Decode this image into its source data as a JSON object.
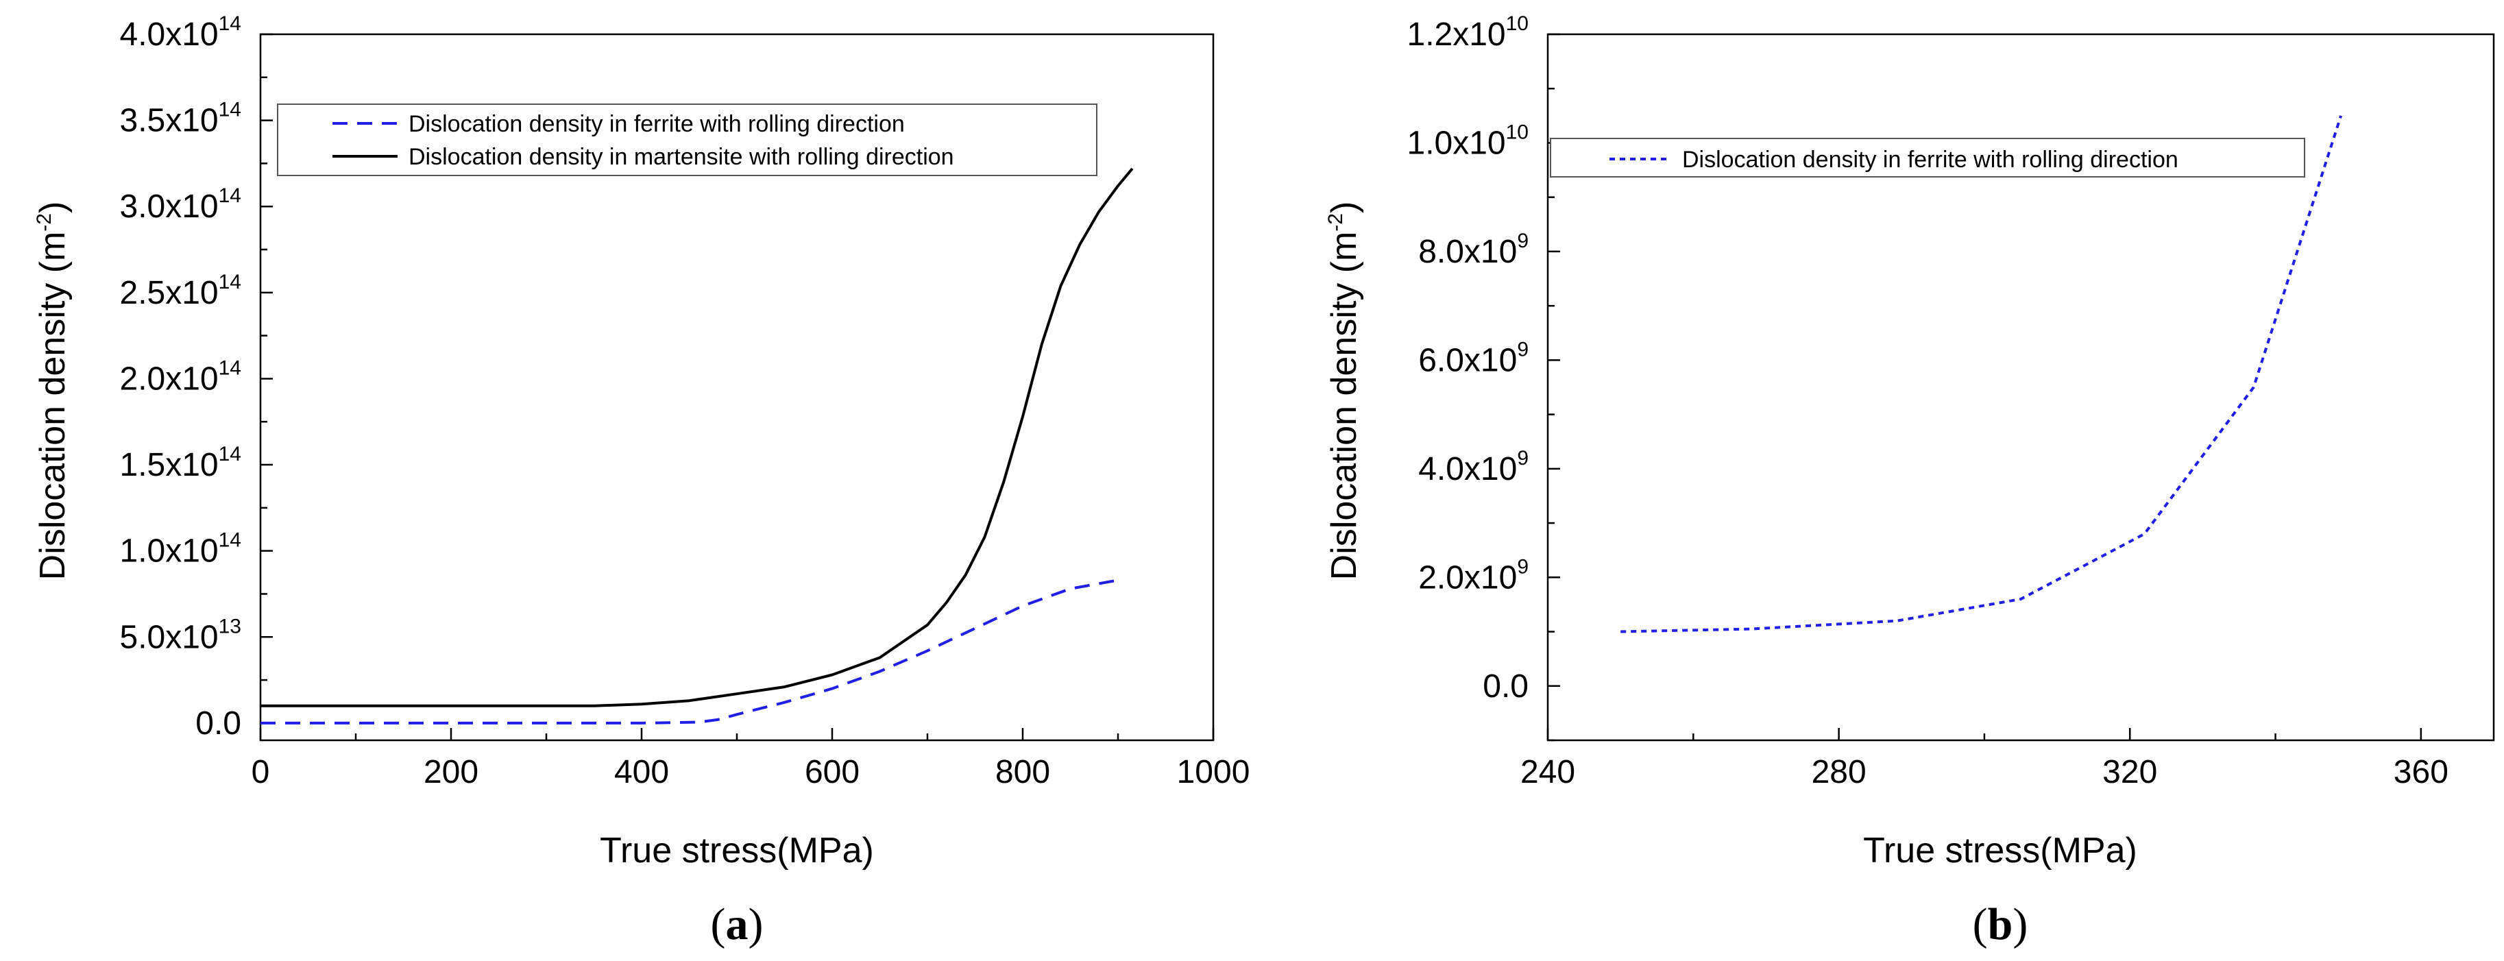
{
  "chart_data": [
    {
      "panel": "a",
      "type": "line",
      "xlabel": "True stress(MPa)",
      "ylabel": "Dislocation density (m",
      "ylabel_exp": "-2",
      "ylabel_close": ")",
      "xlim": [
        0,
        1000
      ],
      "ylim": [
        -10000000000000,
        400000000000000
      ],
      "x_ticks": [
        0,
        200,
        400,
        600,
        800,
        1000
      ],
      "x_tick_labels": [
        "0",
        "200",
        "400",
        "600",
        "800",
        "1000"
      ],
      "y_ticks": [
        {
          "value": 0,
          "base": "0.0",
          "exp": ""
        },
        {
          "value": 50000000000000,
          "base": "5.0x10",
          "exp": "13"
        },
        {
          "value": 100000000000000,
          "base": "1.0x10",
          "exp": "14"
        },
        {
          "value": 150000000000000,
          "base": "1.5x10",
          "exp": "14"
        },
        {
          "value": 200000000000000,
          "base": "2.0x10",
          "exp": "14"
        },
        {
          "value": 250000000000000,
          "base": "2.5x10",
          "exp": "14"
        },
        {
          "value": 300000000000000,
          "base": "3.0x10",
          "exp": "14"
        },
        {
          "value": 350000000000000,
          "base": "3.5x10",
          "exp": "14"
        },
        {
          "value": 400000000000000,
          "base": "4.0x10",
          "exp": "14"
        }
      ],
      "series": [
        {
          "name": "Dislocation density in ferrite with rolling direction",
          "color": "#1f1fe6",
          "dash": "dashed",
          "x": [
            0,
            100,
            200,
            300,
            400,
            460,
            480,
            500,
            550,
            600,
            650,
            700,
            750,
            800,
            850,
            900
          ],
          "y": [
            0,
            0,
            0,
            0,
            0,
            500000000000,
            2000000000000,
            5000000000000,
            12000000000000,
            20000000000000,
            30000000000000,
            42000000000000,
            55000000000000,
            68000000000000,
            78000000000000,
            83000000000000
          ]
        },
        {
          "name": "Dislocation density in martensite with rolling direction",
          "color": "#000000",
          "dash": "solid",
          "x": [
            0,
            100,
            200,
            300,
            350,
            400,
            450,
            500,
            550,
            600,
            650,
            700,
            720,
            740,
            760,
            780,
            800,
            820,
            840,
            860,
            880,
            900,
            915
          ],
          "y": [
            10000000000000,
            10000000000000,
            10000000000000,
            10000000000000,
            10000000000000,
            11000000000000,
            13000000000000,
            17000000000000,
            21000000000000,
            28000000000000,
            38000000000000,
            57000000000000,
            70000000000000,
            86000000000000,
            108000000000000,
            140000000000000,
            178000000000000,
            220000000000000,
            254000000000000,
            278000000000000,
            297000000000000,
            312000000000000,
            322000000000000
          ]
        }
      ]
    },
    {
      "panel": "b",
      "type": "line",
      "xlabel": "True stress(MPa)",
      "ylabel": "Dislocation density (m",
      "ylabel_exp": "-2",
      "ylabel_close": ")",
      "xlim": [
        240,
        370
      ],
      "ylim": [
        -1000000000,
        12000000000
      ],
      "x_ticks": [
        240,
        280,
        320,
        360
      ],
      "x_tick_labels": [
        "240",
        "280",
        "320",
        "360"
      ],
      "y_ticks": [
        {
          "value": 0,
          "base": "0.0",
          "exp": ""
        },
        {
          "value": 2000000000,
          "base": "2.0x10",
          "exp": "9"
        },
        {
          "value": 4000000000,
          "base": "4.0x10",
          "exp": "9"
        },
        {
          "value": 6000000000,
          "base": "6.0x10",
          "exp": "9"
        },
        {
          "value": 8000000000,
          "base": "8.0x10",
          "exp": "9"
        },
        {
          "value": 10000000000,
          "base": "1.0x10",
          "exp": "10"
        },
        {
          "value": 12000000000,
          "base": "1.2x10",
          "exp": "10"
        }
      ],
      "series": [
        {
          "name": "Dislocation density in ferrite with rolling direction",
          "color": "#1f1fe6",
          "dash": "dotted",
          "x": [
            250,
            268,
            288,
            305,
            322,
            337,
            349
          ],
          "y": [
            1000000000,
            1050000000,
            1200000000,
            1600000000,
            2800000000,
            5500000000,
            10500000000
          ]
        }
      ]
    }
  ],
  "panel_labels": {
    "a_open": "(",
    "a_letter": "a",
    "a_close": ")",
    "b_open": "(",
    "b_letter": "b",
    "b_close": ")"
  }
}
